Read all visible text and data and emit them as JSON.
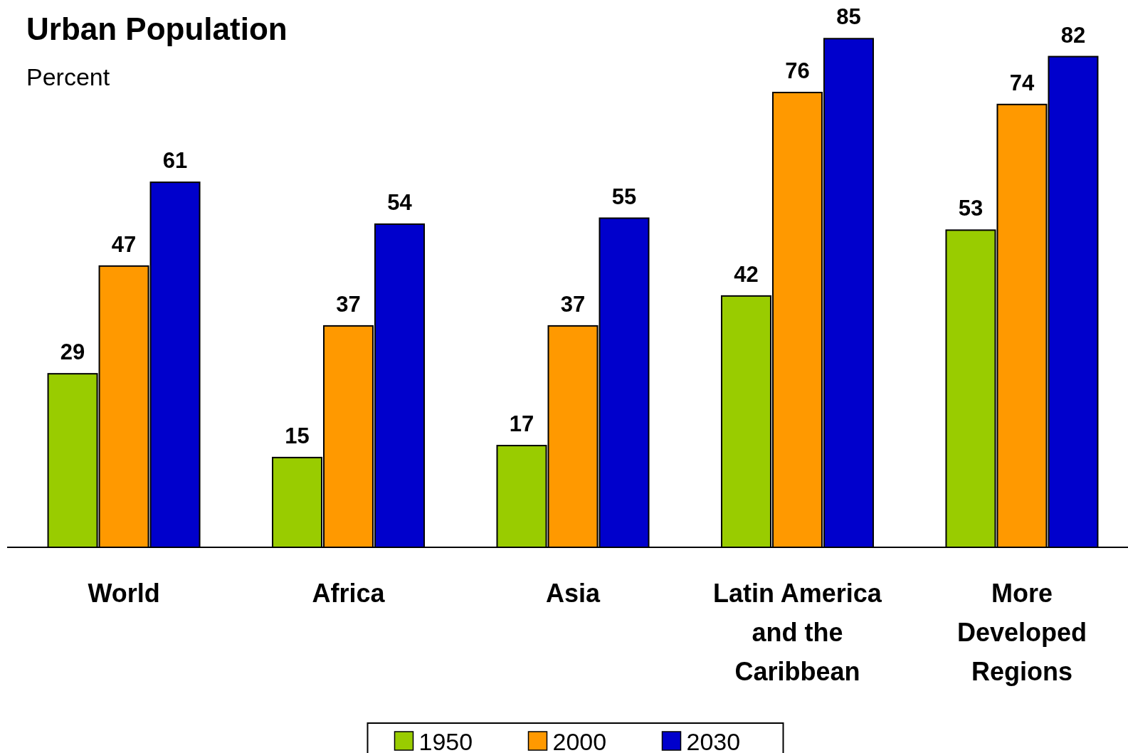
{
  "chart_data": {
    "type": "bar",
    "title": "Urban Population",
    "subtitle": "Percent",
    "categories": [
      "World",
      "Africa",
      "Asia",
      "Latin America and the Caribbean",
      "More Developed Regions"
    ],
    "series": [
      {
        "name": "1950",
        "color": "#99cc00",
        "values": [
          29,
          15,
          17,
          42,
          53
        ]
      },
      {
        "name": "2000",
        "color": "#ff9900",
        "values": [
          47,
          37,
          37,
          76,
          74
        ]
      },
      {
        "name": "2030",
        "color": "#0000cc",
        "values": [
          61,
          54,
          55,
          85,
          82
        ]
      }
    ],
    "data_labels": true,
    "legend": "bottom"
  }
}
